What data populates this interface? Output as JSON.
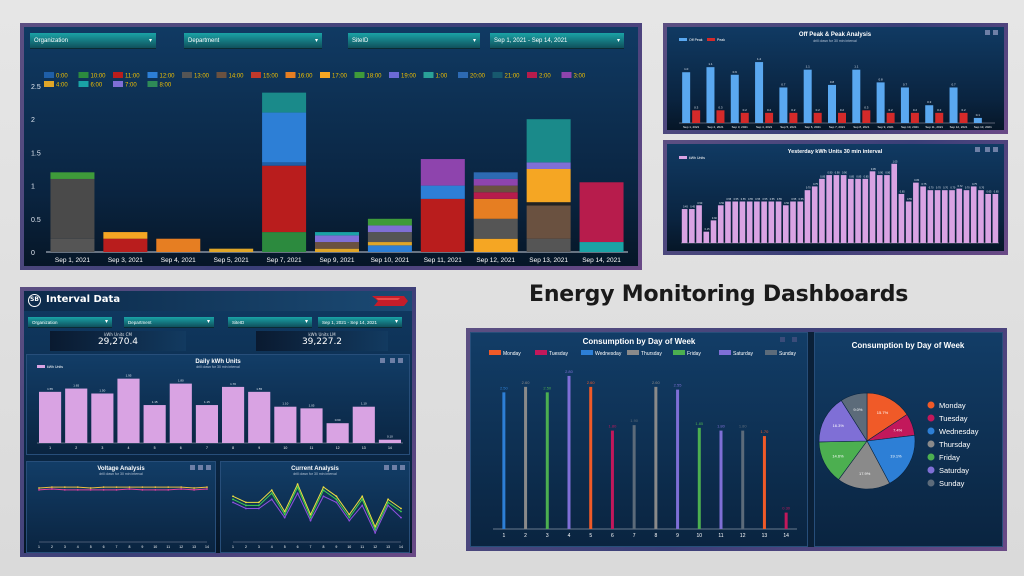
{
  "page_title": "Energy Monitoring Dashboards",
  "main_dashboard": {
    "filters": {
      "organization": "Organization",
      "department": "Department",
      "siteid": "SiteID",
      "date_range": "Sep 1, 2021 - Sep 14, 2021"
    },
    "legend": [
      "0:00",
      "10:00",
      "11:00",
      "12:00",
      "13:00",
      "14:00",
      "15:00",
      "16:00",
      "17:00",
      "18:00",
      "19:00",
      "1:00",
      "20:00",
      "21:00",
      "2:00",
      "3:00",
      "4:00",
      "6:00",
      "7:00",
      "8:00"
    ],
    "legend_colors": [
      "#1f5fa8",
      "#2c8a3e",
      "#b91d1d",
      "#2d7fd6",
      "#555555",
      "#6a5140",
      "#c0392b",
      "#e67e22",
      "#f5a623",
      "#3f9b3a",
      "#6b6bd6",
      "#2aa198",
      "#2d6ab3",
      "#17596e",
      "#b71c4c",
      "#8e44ad",
      "#e0a628",
      "#1aa3a6",
      "#7f6fd6",
      "#2e8b57"
    ]
  },
  "chart_data": [
    {
      "type": "bar",
      "title": "",
      "categories": [
        "Sep 1, 2021",
        "Sep 3, 2021",
        "Sep 4, 2021",
        "Sep 5, 2021",
        "Sep 7, 2021",
        "Sep 9, 2021",
        "Sep 10, 2021",
        "Sep 11, 2021",
        "Sep 12, 2021",
        "Sep 13, 2021",
        "Sep 14, 2021"
      ],
      "stacked": [
        [
          [
            0.2,
            "#555555"
          ],
          [
            0.9,
            "#4a4a4a"
          ],
          [
            0.1,
            "#3f9b3a"
          ]
        ],
        [
          [
            0.2,
            "#b91d1d"
          ],
          [
            0.1,
            "#f5a623"
          ]
        ],
        [
          [
            0.2,
            "#e67e22"
          ]
        ],
        [
          [
            0.05,
            "#e0a628"
          ]
        ],
        [
          [
            0.3,
            "#2c8a3e"
          ],
          [
            1.0,
            "#b91d1d"
          ],
          [
            0.05,
            "#1f5fa8"
          ],
          [
            0.75,
            "#2d7fd6"
          ],
          [
            0.3,
            "#1a8a8a"
          ]
        ],
        [
          [
            0.05,
            "#e0a628"
          ],
          [
            0.1,
            "#6a5140"
          ],
          [
            0.1,
            "#7f6fd6"
          ],
          [
            0.05,
            "#1aa3a6"
          ]
        ],
        [
          [
            0.1,
            "#2d7fd6"
          ],
          [
            0.05,
            "#e0a628"
          ],
          [
            0.15,
            "#555555"
          ],
          [
            0.1,
            "#7f6fd6"
          ],
          [
            0.1,
            "#3f9b3a"
          ]
        ],
        [
          [
            0.8,
            "#b91d1d"
          ],
          [
            0.2,
            "#2d7fd6"
          ],
          [
            0.4,
            "#8e44ad"
          ]
        ],
        [
          [
            0.2,
            "#f5a623"
          ],
          [
            0.3,
            "#555555"
          ],
          [
            0.3,
            "#e67e22"
          ],
          [
            0.1,
            "#b71c4c"
          ],
          [
            0.1,
            "#6a5140"
          ],
          [
            0.1,
            "#8e44ad"
          ],
          [
            0.1,
            "#2d6ab3"
          ]
        ],
        [
          [
            0.2,
            "#555555"
          ],
          [
            0.5,
            "#6a5140"
          ],
          [
            0.05,
            "#222222"
          ],
          [
            0.5,
            "#f5a623"
          ],
          [
            0.1,
            "#7f6fd6"
          ],
          [
            0.65,
            "#1a8a8a"
          ]
        ],
        [
          [
            0.15,
            "#1aa3a6"
          ],
          [
            0.9,
            "#b71c4c"
          ]
        ]
      ],
      "ylim": [
        0,
        2.5
      ],
      "yticks": [
        "0",
        "0.5",
        "1",
        "1.5",
        "2",
        "2.5"
      ]
    },
    {
      "type": "bar",
      "title": "Off Peak & Peak Analysis",
      "subtitle": "drill down for 30 min interval",
      "legend": [
        "Off Peak",
        "Peak"
      ],
      "series": [
        {
          "name": "Off Peak",
          "color": "#5aa8f0",
          "values": [
            1.0,
            1.1,
            0.95,
            1.2,
            0.7,
            1.05,
            0.75,
            1.05,
            0.8,
            0.7,
            0.35,
            0.7,
            0.1
          ]
        },
        {
          "name": "Peak",
          "color": "#d42a2a",
          "values": [
            0.25,
            0.25,
            0.2,
            0.2,
            0.2,
            0.2,
            0.2,
            0.25,
            0.2,
            0.2,
            0.2,
            0.2,
            0.0
          ]
        }
      ],
      "categories": [
        "Sep 1, 2021",
        "Sep 2, 2021",
        "Sep 3, 2021",
        "Sep 4, 2021",
        "Sep 5, 2021",
        "Sep 6, 2021",
        "Sep 7, 2021",
        "Sep 8, 2021",
        "Sep 9, 2021",
        "Sep 10, 2021",
        "Sep 11, 2021",
        "Sep 12, 2021",
        "Sep 13, 2021"
      ]
    },
    {
      "type": "bar",
      "title": "Yesterday kWh Units 30 min interval",
      "legend": [
        "kWh Units"
      ],
      "color": "#d9a3e3",
      "values": [
        0.45,
        0.45,
        0.5,
        0.15,
        0.3,
        0.5,
        0.55,
        0.55,
        0.55,
        0.55,
        0.55,
        0.55,
        0.55,
        0.55,
        0.5,
        0.55,
        0.55,
        0.7,
        0.75,
        0.85,
        0.9,
        0.9,
        0.9,
        0.85,
        0.85,
        0.85,
        0.95,
        0.9,
        0.9,
        1.05,
        0.65,
        0.55,
        0.8,
        0.75,
        0.7,
        0.7,
        0.7,
        0.7,
        0.72,
        0.7,
        0.75,
        0.7,
        0.65,
        0.65
      ]
    },
    {
      "type": "bar",
      "title": "Daily kWh Units",
      "subtitle": "drill down for 30 min interval",
      "legend": [
        "kWh Units"
      ],
      "categories": [
        "1",
        "2",
        "3",
        "4",
        "5",
        "6",
        "7",
        "8",
        "9",
        "10",
        "11",
        "12",
        "13",
        "14"
      ],
      "values": [
        1.55,
        1.65,
        1.5,
        1.95,
        1.15,
        1.8,
        1.15,
        1.7,
        1.55,
        1.1,
        1.05,
        0.6,
        1.1,
        0.1
      ],
      "color": "#d9a3e3"
    },
    {
      "type": "line",
      "title": "Voltage Analysis",
      "subtitle": "drill down for 30 min interval",
      "categories": [
        "1",
        "2",
        "3",
        "4",
        "5",
        "6",
        "7",
        "8",
        "9",
        "10",
        "11",
        "12",
        "13",
        "14"
      ],
      "series": [
        {
          "name": "",
          "color": "#f0c040",
          "values": [
            239,
            240,
            240,
            240,
            239,
            240,
            240,
            240,
            240,
            240,
            240,
            240,
            239,
            240
          ]
        },
        {
          "name": "",
          "color": "#e040a0",
          "values": [
            237,
            238,
            237,
            237,
            237,
            237,
            237,
            238,
            237,
            237,
            237,
            238,
            237,
            238
          ]
        }
      ]
    },
    {
      "type": "line",
      "title": "Current Analysis",
      "subtitle": "drill down for 30 min interval",
      "categories": [
        "1",
        "2",
        "3",
        "4",
        "5",
        "6",
        "7",
        "8",
        "9",
        "10",
        "11",
        "12",
        "13",
        "14"
      ],
      "series": [
        {
          "name": "",
          "color": "#f0e040",
          "values": [
            1.05,
            0.95,
            0.95,
            1.15,
            0.8,
            1.25,
            0.75,
            1.2,
            1.05,
            0.75,
            1.05,
            0.55,
            1.0,
            0.85
          ]
        },
        {
          "name": "",
          "color": "#40d050",
          "values": [
            1.0,
            0.9,
            0.9,
            1.1,
            0.75,
            1.2,
            0.7,
            1.15,
            1.0,
            0.7,
            1.0,
            0.5,
            0.95,
            0.8
          ]
        },
        {
          "name": "",
          "color": "#9050e0",
          "values": [
            0.95,
            0.85,
            0.85,
            1.0,
            0.7,
            1.1,
            0.65,
            1.05,
            0.95,
            0.65,
            0.9,
            0.45,
            0.9,
            0.7
          ]
        }
      ]
    },
    {
      "type": "bar",
      "title": "Consumption by Day of Week",
      "legend": [
        "Monday",
        "Tuesday",
        "Wednesday",
        "Thursday",
        "Friday",
        "Saturday",
        "Sunday"
      ],
      "colors": [
        "#f05a28",
        "#c2185b",
        "#2d7fd6",
        "#8a8a8a",
        "#4caf50",
        "#7f6fd6",
        "#5c6b7a"
      ],
      "categories": [
        "1",
        "2",
        "3",
        "4",
        "5",
        "6",
        "7",
        "8",
        "9",
        "10",
        "11",
        "12",
        "13",
        "14"
      ],
      "values": [
        2.5,
        2.6,
        2.5,
        2.8,
        2.6,
        1.8,
        1.9,
        2.6,
        2.55,
        1.85,
        1.8,
        1.8,
        1.7,
        0.3
      ],
      "day_index": [
        2,
        3,
        4,
        5,
        0,
        1,
        6,
        3,
        5,
        4,
        5,
        6,
        0,
        1
      ]
    },
    {
      "type": "pie",
      "title": "Consumption by Day of Week",
      "labels": [
        "Monday",
        "Tuesday",
        "Wednesday",
        "Thursday",
        "Friday",
        "Saturday",
        "Sunday"
      ],
      "values": [
        15.7,
        7.4,
        19.1,
        17.9,
        14.6,
        16.3,
        9.0
      ],
      "colors": [
        "#f05a28",
        "#c2185b",
        "#2d7fd6",
        "#8a8a8a",
        "#4caf50",
        "#7f6fd6",
        "#5c6b7a"
      ]
    }
  ],
  "interval_dashboard": {
    "title": "Interval Data",
    "filters": {
      "organization": "Organization",
      "department": "Department",
      "siteid": "SiteID",
      "date_range": "Sep 1, 2021 - Sep 14, 2021"
    },
    "kpi1": {
      "label": "kWh Units CM",
      "value": "29,270.4"
    },
    "kpi2": {
      "label": "kWh Units LM",
      "value": "39,227.2"
    }
  }
}
